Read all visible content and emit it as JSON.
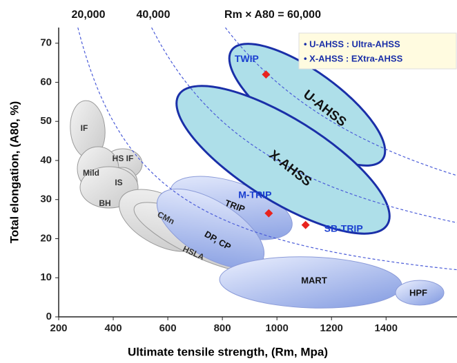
{
  "chart_data": {
    "type": "scatter",
    "xlabel": "Ultimate tensile strength, (Rm, Mpa)",
    "ylabel": "Total elongation, (A80, %)",
    "xlim": [
      200,
      1660
    ],
    "ylim": [
      0,
      74
    ],
    "xticks": [
      200,
      400,
      600,
      800,
      1000,
      1200,
      1400
    ],
    "yticks": [
      0,
      10,
      20,
      30,
      40,
      50,
      60,
      70
    ],
    "iso_lines": [
      {
        "value": 20000,
        "label": "20,000"
      },
      {
        "value": 40000,
        "label": "40,000"
      },
      {
        "value": 60000,
        "label": "Rm × A80 = 60,000"
      }
    ],
    "regions": [
      "IF",
      "HS IF",
      "Mild",
      "IS",
      "BH",
      "CMn",
      "HSLA",
      "TRIP",
      "DP, CP",
      "MART",
      "HPF",
      "U-AHSS",
      "X-AHSS"
    ],
    "legend": [
      "• U-AHSS : Ultra-AHSS",
      "• X-AHSS : EXtra-AHSS"
    ],
    "points": [
      {
        "name": "TWIP",
        "x": 960,
        "y": 62
      },
      {
        "name": "M-TRIP",
        "x": 970,
        "y": 26.5
      },
      {
        "name": "SB-TRIP",
        "x": 1105,
        "y": 23.5
      }
    ],
    "point_color": "#e8231e"
  }
}
